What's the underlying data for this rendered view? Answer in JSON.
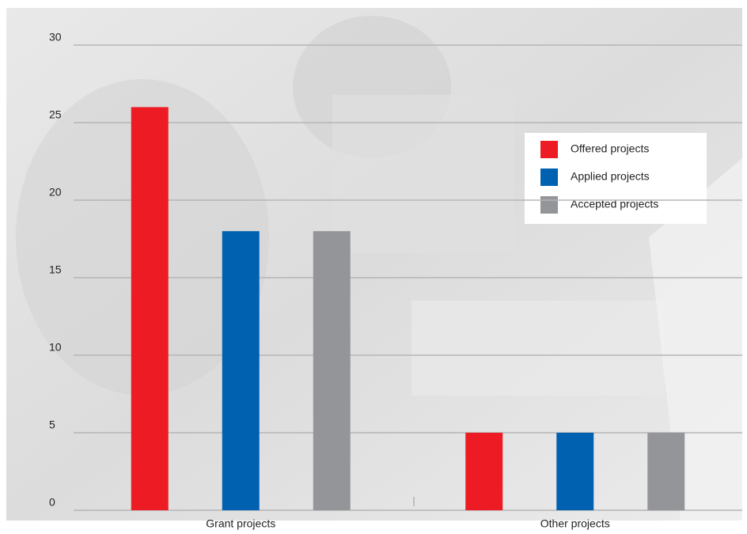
{
  "chart_data": {
    "type": "bar",
    "categories": [
      "Grant projects",
      "Other projects"
    ],
    "series": [
      {
        "name": "Offered projects",
        "color": "#ed1c24",
        "values": [
          26,
          5
        ]
      },
      {
        "name": "Applied projects",
        "color": "#0061b1",
        "values": [
          18,
          5
        ]
      },
      {
        "name": "Accepted projects",
        "color": "#939598",
        "values": [
          18,
          5
        ]
      }
    ],
    "ylim": [
      0,
      30
    ],
    "yticks": [
      0,
      5,
      10,
      15,
      20,
      25,
      30
    ],
    "grid": true,
    "legend": "upper right"
  }
}
